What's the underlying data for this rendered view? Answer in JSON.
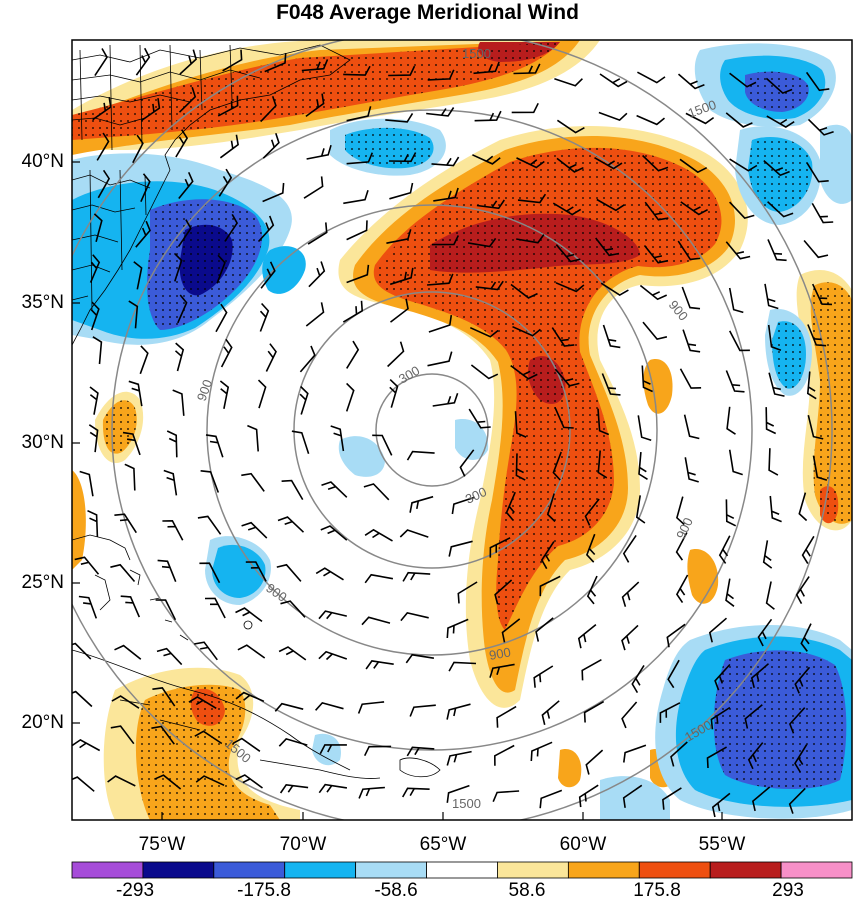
{
  "title": "F048 Average Meridional Wind",
  "lat_labels": [
    "40°N",
    "35°N",
    "30°N",
    "25°N",
    "20°N"
  ],
  "lon_labels": [
    "75°W",
    "70°W",
    "65°W",
    "60°W",
    "55°W"
  ],
  "contour_labels": [
    "1500",
    "1500",
    "900",
    "900",
    "900",
    "900",
    "300",
    "300",
    "900",
    "1500",
    "1500",
    "1500"
  ],
  "colorbar": {
    "colors": [
      "#a64cd9",
      "#0a0a8c",
      "#3b5bd9",
      "#15b4f0",
      "#a8dcf5",
      "#ffffff",
      "#fbe69a",
      "#f8a51b",
      "#ee4f10",
      "#b81d1d",
      "#f790c8"
    ],
    "labels": [
      "-293",
      "-175.8",
      "-58.6",
      "58.6",
      "175.8",
      "293"
    ]
  },
  "colors": {
    "strong_pos": "#b81d1d",
    "pos": "#ee4f10",
    "mod_pos": "#f8a51b",
    "weak_pos": "#fbe69a",
    "weak_neg": "#a8dcf5",
    "mod_neg": "#15b4f0",
    "neg": "#3b5bd9",
    "strong_neg": "#0a0a8c"
  }
}
